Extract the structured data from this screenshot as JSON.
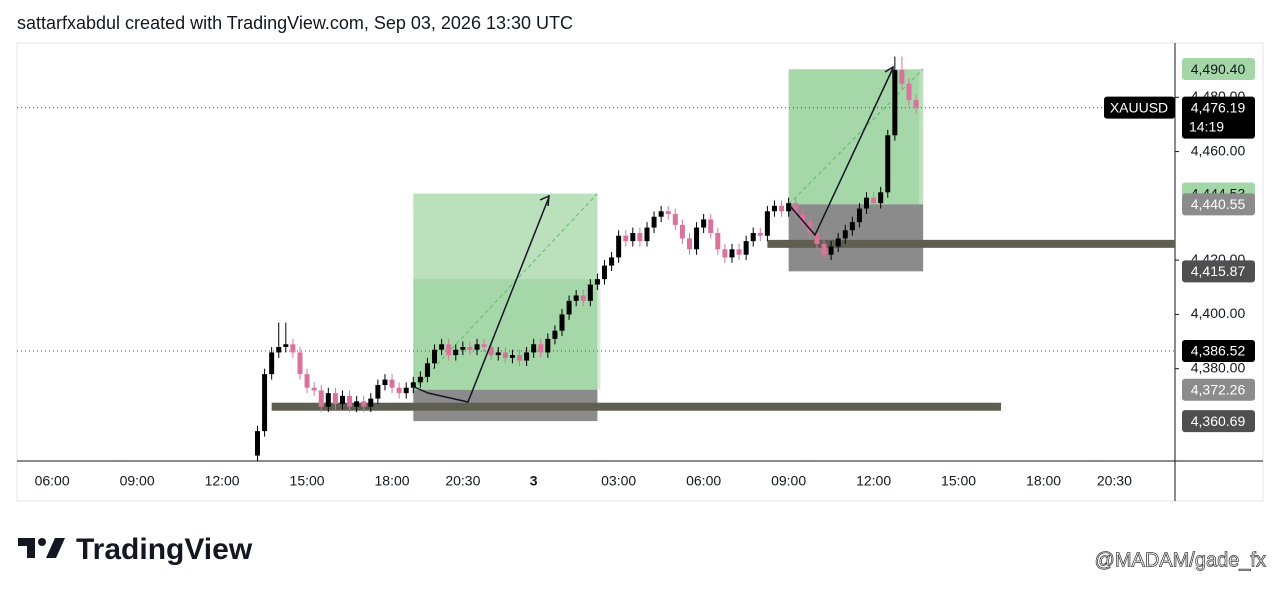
{
  "header": "sattarfxabdul created with TradingView.com, Sep 03, 2026 13:30 UTC",
  "chart_data": {
    "type": "candlestick",
    "symbol": "XAUUSD",
    "up_color": "#000000",
    "down_color": "#d9739c",
    "xlim": [
      4.76,
      45.64
    ],
    "ylim": [
      4346,
      4500
    ],
    "xticks": [
      {
        "value": 6,
        "label": "06:00"
      },
      {
        "value": 9,
        "label": "09:00"
      },
      {
        "value": 12,
        "label": "12:00"
      },
      {
        "value": 15,
        "label": "15:00"
      },
      {
        "value": 18,
        "label": "18:00"
      },
      {
        "value": 20.5,
        "label": "20:30"
      },
      {
        "value": 23,
        "label": "3"
      },
      {
        "value": 26,
        "label": "03:00"
      },
      {
        "value": 29,
        "label": "06:00"
      },
      {
        "value": 32,
        "label": "09:00"
      },
      {
        "value": 35,
        "label": "12:00"
      },
      {
        "value": 38,
        "label": "15:00"
      },
      {
        "value": 41,
        "label": "18:00"
      },
      {
        "value": 43.5,
        "label": "20:30"
      }
    ],
    "yticks": [
      {
        "value": 4380,
        "label": "4,380.00"
      },
      {
        "value": 4400,
        "label": "4,400.00"
      },
      {
        "value": 4420,
        "label": "4,420.00"
      },
      {
        "value": 4460,
        "label": "4,460.00"
      },
      {
        "value": 4480,
        "label": "4,480.00"
      }
    ],
    "x": [
      13.25,
      13.5,
      13.75,
      14,
      14.25,
      14.5,
      14.75,
      15,
      15.25,
      15.5,
      15.75,
      16,
      16.25,
      16.5,
      16.75,
      17,
      17.25,
      17.5,
      17.75,
      18,
      18.25,
      18.5,
      18.75,
      19,
      19.25,
      19.5,
      19.75,
      20,
      20.25,
      20.5,
      20.75,
      21,
      21.25,
      21.5,
      21.75,
      22,
      22.25,
      22.5,
      22.75,
      23,
      23.25,
      23.5,
      23.75,
      24,
      24.25,
      24.5,
      24.75,
      25,
      25.25,
      25.5,
      25.75,
      26,
      26.25,
      26.5,
      26.75,
      27,
      27.25,
      27.5,
      27.75,
      28,
      28.25,
      28.5,
      28.75,
      29,
      29.25,
      29.5,
      29.75,
      30,
      30.25,
      30.5,
      30.75,
      31,
      31.25,
      31.5,
      31.75,
      32,
      32.25,
      32.5,
      32.75,
      33,
      33.25,
      33.5,
      33.75,
      34,
      34.25,
      34.5,
      34.75,
      35,
      35.25,
      35.5,
      35.75,
      36,
      36.25,
      36.5
    ],
    "open": [
      4348,
      4357,
      4378,
      4386,
      4388,
      4389,
      4386,
      4378,
      4373,
      4372,
      4366,
      4371,
      4367,
      4370,
      4366,
      4368,
      4366,
      4369,
      4374,
      4376,
      4373,
      4371,
      4373,
      4375,
      4377,
      4382,
      4387,
      4389,
      4385,
      4387,
      4388,
      4387,
      4389,
      4388,
      4385,
      4386,
      4384,
      4385,
      4383,
      4386,
      4389,
      4386,
      4391,
      4394,
      4400,
      4405,
      4407,
      4405,
      4411,
      4413,
      4418,
      4421,
      4429,
      4427,
      4430,
      4427,
      4432,
      4436,
      4438,
      4437,
      4433,
      4428,
      4424,
      4432,
      4435,
      4430,
      4424,
      4421,
      4424,
      4422,
      4427,
      4430,
      4429,
      4438,
      4440,
      4438,
      4441,
      4437,
      4434,
      4430,
      4426,
      4422,
      4425,
      4428,
      4431,
      4434,
      4439,
      4443,
      4441,
      4445,
      4466,
      4490,
      4485,
      4479
    ],
    "high": [
      4359,
      4380,
      4388,
      4397,
      4397,
      4391,
      4388,
      4380,
      4375,
      4374,
      4373,
      4373,
      4372,
      4372,
      4370,
      4370,
      4371,
      4376,
      4378,
      4378,
      4375,
      4375,
      4377,
      4379,
      4384,
      4389,
      4391,
      4391,
      4389,
      4390,
      4390,
      4391,
      4391,
      4390,
      4388,
      4388,
      4387,
      4387,
      4388,
      4391,
      4391,
      4393,
      4396,
      4402,
      4407,
      4409,
      4409,
      4413,
      4415,
      4420,
      4423,
      4431,
      4431,
      4432,
      4432,
      4434,
      4438,
      4440,
      4440,
      4439,
      4435,
      4430,
      4434,
      4437,
      4437,
      4432,
      4426,
      4426,
      4426,
      4429,
      4432,
      4432,
      4440,
      4442,
      4442,
      4443,
      4443,
      4439,
      4436,
      4432,
      4428,
      4427,
      4430,
      4433,
      4436,
      4441,
      4445,
      4445,
      4447,
      4468,
      4495,
      4495,
      4487,
      4481
    ],
    "low": [
      4346,
      4355,
      4376,
      4384,
      4386,
      4384,
      4376,
      4371,
      4370,
      4364,
      4364,
      4365,
      4365,
      4364,
      4364,
      4364,
      4364,
      4367,
      4372,
      4371,
      4369,
      4369,
      4371,
      4373,
      4375,
      4380,
      4385,
      4383,
      4383,
      4385,
      4385,
      4385,
      4386,
      4383,
      4383,
      4382,
      4382,
      4381,
      4381,
      4384,
      4384,
      4384,
      4389,
      4392,
      4398,
      4403,
      4403,
      4403,
      4409,
      4411,
      4416,
      4419,
      4425,
      4425,
      4425,
      4425,
      4430,
      4434,
      4435,
      4431,
      4426,
      4422,
      4422,
      4430,
      4428,
      4422,
      4419,
      4419,
      4420,
      4420,
      4425,
      4427,
      4427,
      4436,
      4436,
      4436,
      4435,
      4432,
      4428,
      4424,
      4420,
      4420,
      4423,
      4426,
      4429,
      4432,
      4437,
      4439,
      4439,
      4443,
      4464,
      4483,
      4477,
      4474
    ],
    "close": [
      4357,
      4378,
      4386,
      4388,
      4389,
      4386,
      4378,
      4373,
      4372,
      4366,
      4371,
      4367,
      4370,
      4366,
      4368,
      4366,
      4369,
      4374,
      4376,
      4373,
      4371,
      4373,
      4375,
      4377,
      4382,
      4387,
      4389,
      4385,
      4387,
      4388,
      4387,
      4389,
      4388,
      4385,
      4386,
      4384,
      4385,
      4383,
      4386,
      4389,
      4386,
      4391,
      4394,
      4400,
      4405,
      4407,
      4405,
      4411,
      4413,
      4418,
      4421,
      4429,
      4427,
      4430,
      4427,
      4432,
      4436,
      4438,
      4437,
      4433,
      4428,
      4424,
      4432,
      4435,
      4430,
      4424,
      4421,
      4424,
      4422,
      4427,
      4430,
      4429,
      4438,
      4440,
      4438,
      4441,
      4437,
      4434,
      4430,
      4426,
      4422,
      4425,
      4428,
      4431,
      4434,
      4439,
      4443,
      4441,
      4445,
      4466,
      4490,
      4485,
      4479,
      4476.19
    ],
    "current_price": {
      "value": 4476.19,
      "label": "4,476.19",
      "countdown": "14:19"
    },
    "price_lines": [
      {
        "value": 4386.52,
        "label": "4,386.52"
      }
    ],
    "levels": [
      {
        "value": 4366,
        "start": 13.75,
        "end": 39.5
      },
      {
        "value": 4426,
        "start": 31.25,
        "end": 45.64
      }
    ],
    "level_color": "#5e5f50",
    "positions": [
      {
        "start": 18.75,
        "end": 25.25,
        "target": {
          "value": 4444.53,
          "label": "4,444.53"
        },
        "entry": {
          "value": 4372.26,
          "label": "4,372.26"
        },
        "stop": {
          "value": 4360.69,
          "label": "4,360.69"
        }
      },
      {
        "start": 32,
        "end": 36.75,
        "target": {
          "value": 4490.4,
          "label": "4,490.40"
        },
        "entry": {
          "value": 4440.55,
          "label": "4,440.55"
        },
        "stop": {
          "value": 4415.87,
          "label": "4,415.87"
        }
      }
    ],
    "position_colors": {
      "target": "#a5d6a7",
      "entry": "#8c8c8c",
      "stop": "#4f4f4f"
    }
  },
  "footer": {
    "logo": "TradingView",
    "watermark": "@MADAM/gade_fx"
  }
}
